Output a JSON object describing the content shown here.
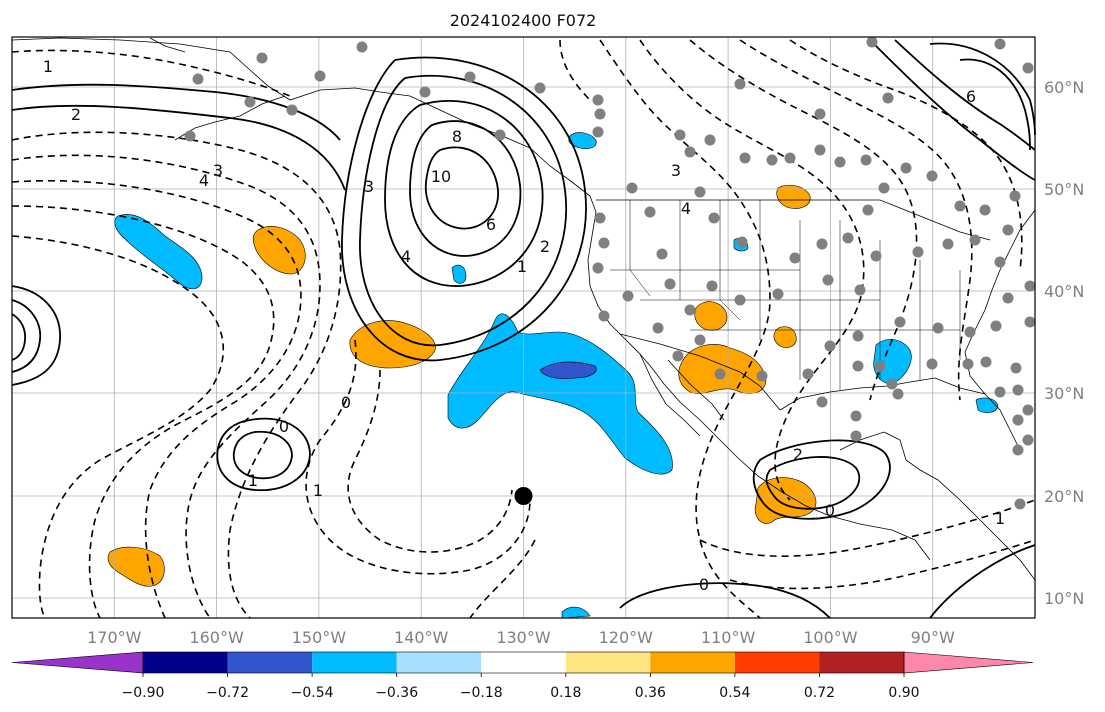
{
  "title": "2024102400 F072",
  "colors": {
    "ocean_background": "#ffffff",
    "gridline": "#b0b0b0",
    "coastline": "#000000",
    "contour": "#000000",
    "station_dot": "#808080",
    "marker": "#000000"
  },
  "map": {
    "lon_range": [
      -180,
      -80
    ],
    "lat_range": [
      8,
      65
    ],
    "lon_labels": [
      "170°W",
      "160°W",
      "150°W",
      "140°W",
      "130°W",
      "120°W",
      "110°W",
      "100°W",
      "90°W"
    ],
    "lat_labels": [
      "60°N",
      "50°N",
      "40°N",
      "30°N",
      "20°N",
      "10°N"
    ],
    "marker_location": {
      "lon": -130,
      "lat": 20
    },
    "contour_labels": [
      "1",
      "2",
      "3",
      "4",
      "6",
      "8",
      "10",
      "0",
      "1",
      "2",
      "3",
      "4",
      "0",
      "2",
      "1",
      "1",
      "0",
      "1",
      "0",
      "3",
      "4",
      "6"
    ],
    "shaded_anomalies": [
      {
        "name": "central-pacific-negative",
        "sign": "negative",
        "level": "-0.36 to -0.54"
      },
      {
        "name": "subtropical-negative-large",
        "sign": "negative",
        "level": "-0.54 to -0.72"
      },
      {
        "name": "gulf-of-alaska-positive",
        "sign": "positive",
        "level": "0.36 to 0.54"
      },
      {
        "name": "offshore-positive",
        "sign": "positive",
        "level": "0.36 to 0.54"
      },
      {
        "name": "southwest-us-positive",
        "sign": "positive",
        "level": "0.36 to 0.54"
      },
      {
        "name": "mexico-positive",
        "sign": "positive",
        "level": "0.36 to 0.54"
      },
      {
        "name": "hawaii-positive",
        "sign": "positive",
        "level": "0.36 to 0.54"
      },
      {
        "name": "gulf-coast-negative",
        "sign": "negative",
        "level": "-0.36 to -0.54"
      }
    ]
  },
  "colorbar": {
    "ticks": [
      "−0.90",
      "−0.72",
      "−0.54",
      "−0.36",
      "−0.18",
      "0.18",
      "0.36",
      "0.54",
      "0.72",
      "0.90"
    ],
    "colors": [
      "#9933cc",
      "#000088",
      "#3355cc",
      "#00bbff",
      "#aadeff",
      "#ffffff",
      "#ffe680",
      "#ffa500",
      "#ff3d00",
      "#b22222",
      "#ff88aa"
    ]
  }
}
